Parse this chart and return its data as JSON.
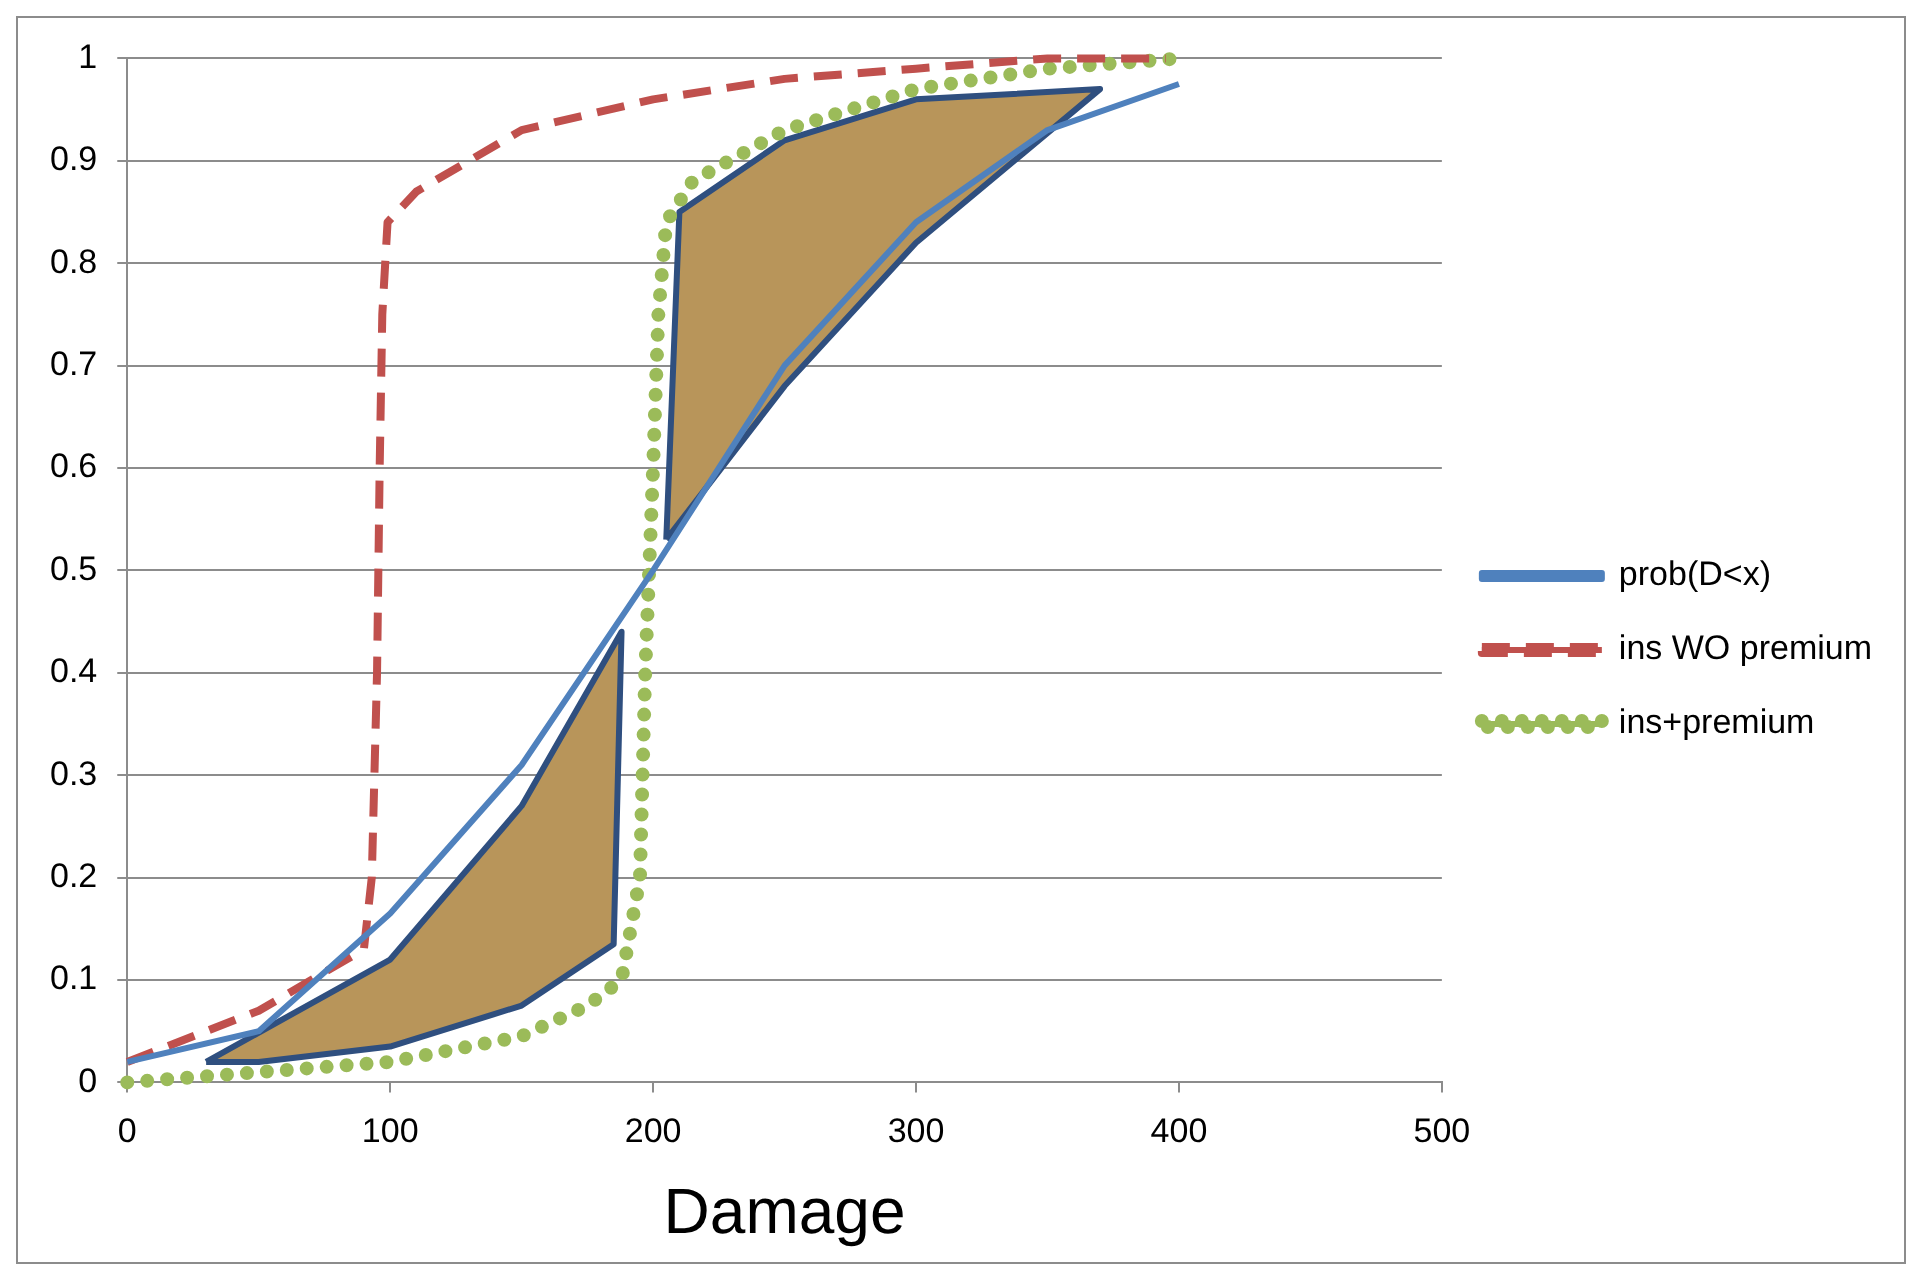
{
  "chart_data": {
    "type": "line",
    "xlabel": "Damage",
    "xlim": [
      0,
      500
    ],
    "xticks": [
      0,
      100,
      200,
      300,
      400,
      500
    ],
    "ylim": [
      0,
      1
    ],
    "yticks": [
      0,
      0.1,
      0.2,
      0.3,
      0.4,
      0.5,
      0.6,
      0.7,
      0.8,
      0.9,
      1
    ],
    "grid": "y",
    "legend": "right",
    "marker": "none",
    "series": [
      {
        "type": "area",
        "color": "#b8955a",
        "x": [
          30,
          50,
          100,
          150,
          185,
          188,
          150,
          100,
          30
        ],
        "values": [
          0.02,
          0.02,
          0.035,
          0.075,
          0.135,
          0.44,
          0.27,
          0.12,
          0.02
        ]
      },
      {
        "type": "area",
        "color": "#b8955a",
        "x": [
          205,
          210,
          250,
          300,
          370,
          300,
          250,
          205
        ],
        "values": [
          0.53,
          0.85,
          0.92,
          0.96,
          0.97,
          0.82,
          0.68,
          0.53
        ]
      },
      {
        "name": "prob(D<x)",
        "color": "#4f81bd",
        "line_style": "solid",
        "x": [
          0,
          50,
          100,
          150,
          200,
          250,
          300,
          350,
          400
        ],
        "values": [
          0.02,
          0.05,
          0.165,
          0.31,
          0.5,
          0.7,
          0.84,
          0.93,
          0.975
        ]
      },
      {
        "name": "ins WO premium",
        "color": "#c0504d",
        "line_style": "dashed",
        "x": [
          0,
          50,
          90,
          93,
          95,
          96,
          97,
          99,
          110,
          150,
          200,
          250,
          300,
          350,
          395
        ],
        "values": [
          0.02,
          0.07,
          0.13,
          0.2,
          0.4,
          0.6,
          0.75,
          0.84,
          0.87,
          0.93,
          0.96,
          0.98,
          0.99,
          1,
          1
        ]
      },
      {
        "name": "ins+premium",
        "color": "#9bbb59",
        "line_style": "dotted",
        "x": [
          0,
          25,
          50,
          100,
          150,
          175,
          188,
          195,
          197,
          200,
          202,
          205,
          215,
          250,
          300,
          350,
          400
        ],
        "values": [
          0,
          0.005,
          0.01,
          0.02,
          0.045,
          0.075,
          0.1,
          0.2,
          0.4,
          0.6,
          0.75,
          0.84,
          0.88,
          0.93,
          0.97,
          0.99,
          1
        ]
      }
    ]
  }
}
